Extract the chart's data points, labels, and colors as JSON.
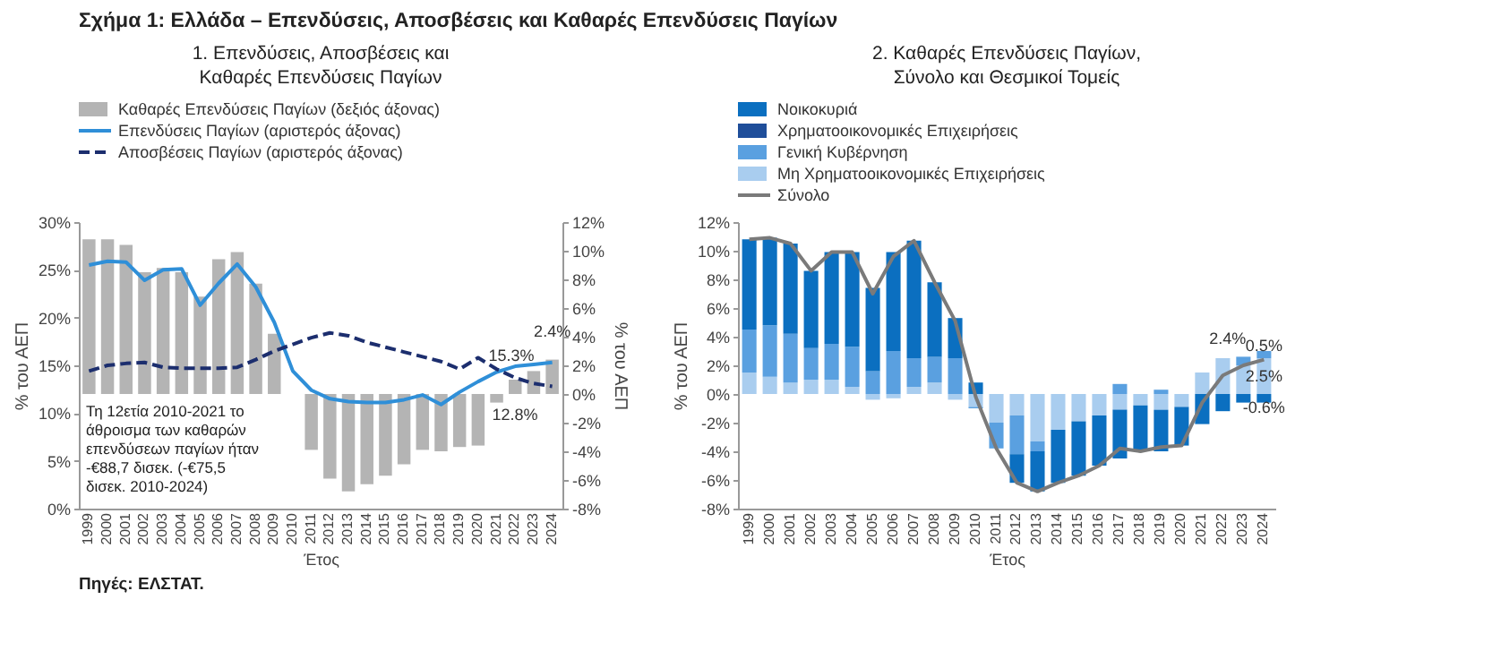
{
  "chart_data": [
    {
      "type": "bar",
      "title": "Σχήμα 1: Ελλάδα – Επενδύσεις, Αποσβέσεις και Καθαρές Επενδύσεις Παγίων",
      "subtitle": "1. Επενδύσεις, Αποσβέσεις και Καθαρές Επενδύσεις Παγίων",
      "xlabel": "Έτος",
      "ylabel": "% του ΑΕΠ",
      "y2label": "% του ΑΕΠ",
      "legend": "top",
      "categories": [
        "1999",
        "2000",
        "2001",
        "2002",
        "2003",
        "2004",
        "2005",
        "2006",
        "2007",
        "2008",
        "2009",
        "2010",
        "2011",
        "2012",
        "2013",
        "2014",
        "2015",
        "2016",
        "2017",
        "2018",
        "2019",
        "2020",
        "2021",
        "2022",
        "2023",
        "2024"
      ],
      "ylim": [
        0,
        30
      ],
      "yticks": [
        {
          "value": 0,
          "label": "0%"
        },
        {
          "value": 5,
          "label": "5%"
        },
        {
          "value": 10,
          "label": "10%"
        },
        {
          "value": 15,
          "label": "15%"
        },
        {
          "value": 20,
          "label": "20%"
        },
        {
          "value": 25,
          "label": "25%"
        },
        {
          "value": 30,
          "label": "30%"
        }
      ],
      "y2lim": [
        -8,
        12
      ],
      "y2ticks": [
        {
          "value": -8,
          "label": "-8%"
        },
        {
          "value": -6,
          "label": "-6%"
        },
        {
          "value": -4,
          "label": "-4%"
        },
        {
          "value": -2,
          "label": "-2%"
        },
        {
          "value": 0,
          "label": "0%"
        },
        {
          "value": 2,
          "label": "2%"
        },
        {
          "value": 4,
          "label": "4%"
        },
        {
          "value": 6,
          "label": "6%"
        },
        {
          "value": 8,
          "label": "8%"
        },
        {
          "value": 10,
          "label": "10%"
        },
        {
          "value": 12,
          "label": "12%"
        }
      ],
      "series": [
        {
          "name": "Καθαρές Επενδύσεις Παγίων (δεξιός άξονας)",
          "axis": "y2",
          "color": "#b4b4b4",
          "values": [
            10.8,
            10.8,
            10.4,
            8.5,
            8.8,
            8.5,
            6.8,
            9.4,
            9.9,
            7.7,
            4.2,
            null,
            -3.9,
            -5.9,
            -6.8,
            -6.3,
            -5.7,
            -4.9,
            -3.9,
            -4.0,
            -3.7,
            -3.6,
            -0.6,
            1.0,
            1.6,
            2.4
          ],
          "value_labels": [
            null,
            null,
            null,
            null,
            null,
            null,
            null,
            null,
            null,
            null,
            null,
            null,
            null,
            null,
            null,
            null,
            null,
            null,
            null,
            null,
            null,
            null,
            null,
            null,
            null,
            "2.4%"
          ]
        },
        {
          "name": "Επενδύσεις Παγίων (αριστερός άξονας)",
          "type": "line",
          "line_style": "solid",
          "color": "#2f8fd8",
          "values": [
            25.5,
            25.9,
            25.8,
            23.9,
            25.0,
            25.1,
            21.3,
            23.6,
            25.6,
            23.2,
            19.5,
            14.4,
            12.4,
            11.5,
            11.2,
            11.1,
            11.1,
            11.4,
            11.9,
            10.9,
            12.2,
            13.3,
            14.3,
            14.9,
            15.1,
            15.3
          ],
          "value_labels": [
            null,
            null,
            null,
            null,
            null,
            null,
            null,
            null,
            null,
            null,
            null,
            null,
            null,
            null,
            null,
            null,
            null,
            null,
            null,
            null,
            null,
            null,
            null,
            null,
            null,
            "15.3%"
          ]
        },
        {
          "name": "Αποσβέσεις Παγίων (αριστερός άξονας)",
          "type": "line",
          "line_style": "dashed",
          "color": "#1c2e6e",
          "values": [
            14.4,
            15.0,
            15.2,
            15.3,
            14.8,
            14.7,
            14.7,
            14.7,
            14.8,
            15.6,
            16.5,
            17.2,
            17.9,
            18.4,
            18.1,
            17.4,
            16.9,
            16.4,
            15.9,
            15.4,
            14.6,
            15.8,
            14.6,
            13.7,
            13.1,
            12.8
          ],
          "value_labels": [
            null,
            null,
            null,
            null,
            null,
            null,
            null,
            null,
            null,
            null,
            null,
            null,
            null,
            null,
            null,
            null,
            null,
            null,
            null,
            null,
            null,
            null,
            null,
            null,
            null,
            "12.8%"
          ]
        }
      ],
      "annotations": [
        "Τη 12ετία 2010-2021 το άθροισμα των καθαρών επενδύσεων παγίων ήταν -€88,7 δισεκ. (-€75,5 δισεκ. 2010-2024)",
        "Πηγές: ΕΛΣΤΑΤ."
      ]
    },
    {
      "type": "bar",
      "stacked": true,
      "subtitle": "2. Καθαρές Επενδύσεις Παγίων, Σύνολο και Θεσμικοί Τομείς",
      "xlabel": "Έτος",
      "ylabel": "% του ΑΕΠ",
      "legend": "top",
      "categories": [
        "1999",
        "2000",
        "2001",
        "2002",
        "2003",
        "2004",
        "2005",
        "2006",
        "2007",
        "2008",
        "2009",
        "2010",
        "2011",
        "2012",
        "2013",
        "2014",
        "2015",
        "2016",
        "2017",
        "2018",
        "2019",
        "2020",
        "2021",
        "2022",
        "2023",
        "2024"
      ],
      "ylim": [
        -8,
        12
      ],
      "yticks": [
        {
          "value": -8,
          "label": "-8%"
        },
        {
          "value": -6,
          "label": "-6%"
        },
        {
          "value": -4,
          "label": "-4%"
        },
        {
          "value": -2,
          "label": "-2%"
        },
        {
          "value": 0,
          "label": "0%"
        },
        {
          "value": 2,
          "label": "2%"
        },
        {
          "value": 4,
          "label": "4%"
        },
        {
          "value": 6,
          "label": "6%"
        },
        {
          "value": 8,
          "label": "8%"
        },
        {
          "value": 10,
          "label": "10%"
        },
        {
          "value": 12,
          "label": "12%"
        }
      ],
      "series": [
        {
          "name": "Μη Χρηματοοικονομικές Επιχειρήσεις",
          "color": "#a9cdef",
          "values": [
            1.5,
            1.2,
            0.8,
            1.0,
            1.0,
            0.5,
            -0.4,
            -0.3,
            0.5,
            0.8,
            -0.4,
            -0.9,
            -2.0,
            -1.5,
            -3.3,
            -2.5,
            -1.9,
            -1.5,
            -1.1,
            -0.8,
            -1.1,
            -0.9,
            1.5,
            2.5,
            2.0,
            2.5
          ],
          "value_labels": [
            null,
            null,
            null,
            null,
            null,
            null,
            null,
            null,
            null,
            null,
            null,
            null,
            null,
            null,
            null,
            null,
            null,
            null,
            null,
            null,
            null,
            null,
            null,
            null,
            null,
            "2.5%"
          ]
        },
        {
          "name": "Γενική Κυβέρνηση",
          "color": "#5aa0e0",
          "values": [
            3.0,
            3.6,
            3.4,
            2.2,
            2.5,
            2.8,
            1.6,
            3.0,
            2.0,
            1.8,
            2.5,
            -0.1,
            -1.8,
            -2.7,
            -0.7,
            0,
            0,
            0,
            0.7,
            0,
            0.3,
            0,
            0,
            0,
            0.6,
            0.5
          ],
          "value_labels": [
            null,
            null,
            null,
            null,
            null,
            null,
            null,
            null,
            null,
            null,
            null,
            null,
            null,
            null,
            null,
            null,
            null,
            null,
            null,
            null,
            null,
            null,
            null,
            null,
            null,
            "0.5%"
          ]
        },
        {
          "name": "Χρηματοοικονομικές Επιχειρήσεις",
          "color": "#1f4e9a",
          "values": [
            0,
            0,
            0,
            0,
            0,
            0,
            0,
            0,
            0,
            0,
            0,
            0,
            0,
            0,
            0,
            0,
            0,
            0,
            0,
            0,
            0,
            0,
            0,
            0,
            0,
            0
          ]
        },
        {
          "name": "Νοικοκυριά",
          "color": "#0b6fc0",
          "values": [
            6.3,
            6.1,
            6.3,
            5.4,
            6.4,
            6.6,
            5.8,
            6.9,
            8.2,
            5.2,
            2.8,
            0.8,
            0,
            -2.0,
            -2.8,
            -3.7,
            -3.8,
            -3.5,
            -3.4,
            -3.2,
            -2.9,
            -2.7,
            -2.1,
            -1.2,
            -0.6,
            -0.6
          ],
          "value_labels": [
            null,
            null,
            null,
            null,
            null,
            null,
            null,
            null,
            null,
            null,
            null,
            null,
            null,
            null,
            null,
            null,
            null,
            null,
            null,
            null,
            null,
            null,
            null,
            null,
            null,
            "-0.6%"
          ]
        },
        {
          "name": "Σύνολο",
          "type": "line",
          "line_style": "solid",
          "color": "#7a7a7a",
          "values": [
            10.8,
            10.9,
            10.5,
            8.6,
            9.9,
            9.9,
            7.0,
            9.6,
            10.7,
            7.8,
            5.1,
            -0.2,
            -3.8,
            -6.2,
            -6.8,
            -6.2,
            -5.7,
            -5.0,
            -3.8,
            -4.0,
            -3.7,
            -3.6,
            -0.6,
            1.3,
            2.0,
            2.4
          ],
          "value_labels": [
            null,
            null,
            null,
            null,
            null,
            null,
            null,
            null,
            null,
            null,
            null,
            null,
            null,
            null,
            null,
            null,
            null,
            null,
            null,
            null,
            null,
            null,
            null,
            null,
            null,
            "2.4%"
          ]
        }
      ]
    }
  ]
}
